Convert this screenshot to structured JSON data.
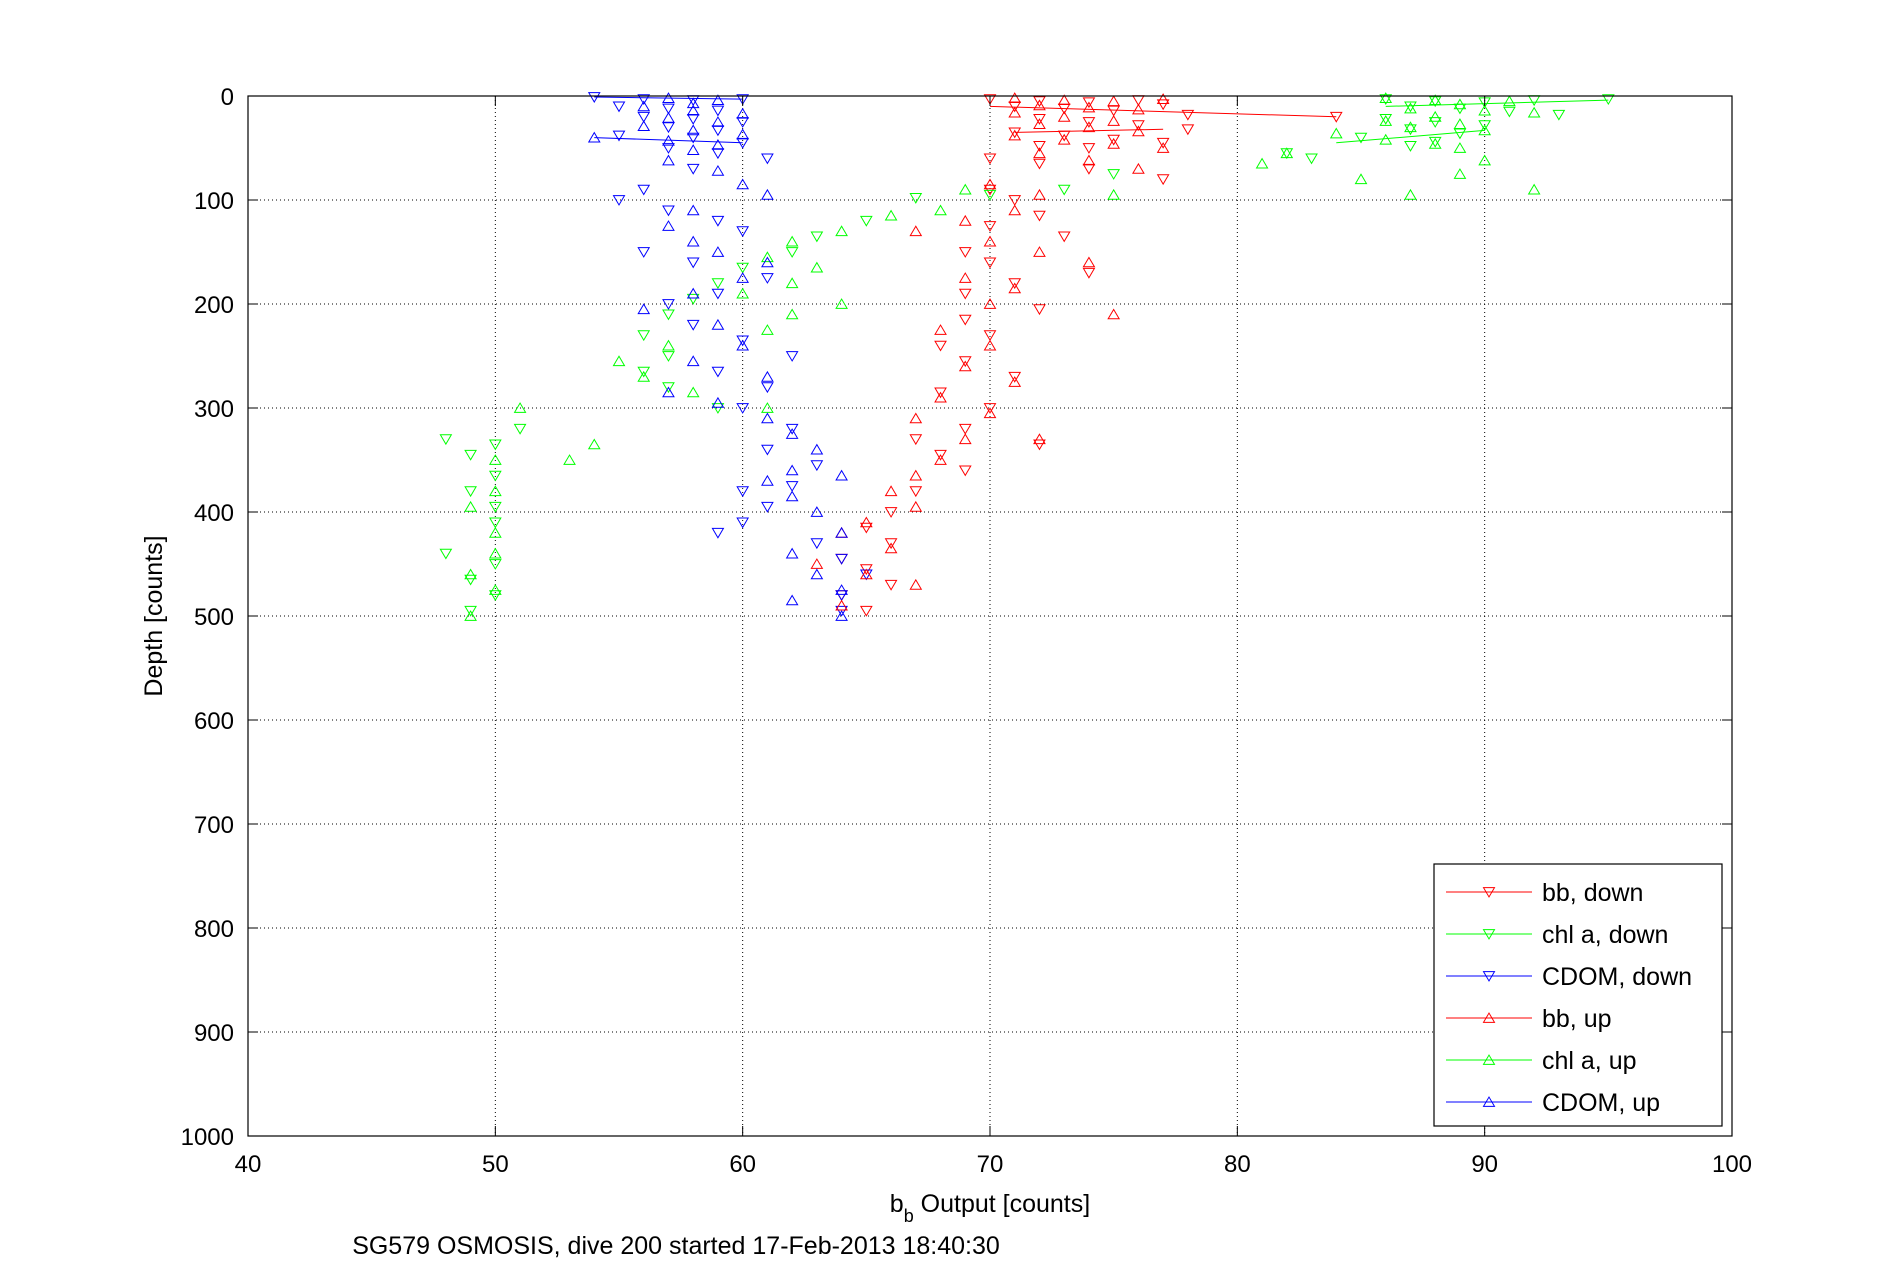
{
  "chart_data": {
    "type": "scatter",
    "xlabel_main": "b",
    "xlabel_sub": "b",
    "xlabel_rest": " Output [counts]",
    "ylabel": "Depth [counts]",
    "caption": "SG579 OSMOSIS, dive 200 started 17-Feb-2013 18:40:30",
    "xlim": [
      40,
      100
    ],
    "ylim": [
      0,
      1000
    ],
    "y_reversed": true,
    "grid": "dotted",
    "legend_position": "bottom-right",
    "x_ticks": [
      40,
      50,
      60,
      70,
      80,
      90,
      100
    ],
    "y_ticks": [
      0,
      100,
      200,
      300,
      400,
      500,
      600,
      700,
      800,
      900,
      1000
    ],
    "x_tick_labels": [
      "40",
      "50",
      "60",
      "70",
      "80",
      "90",
      "100"
    ],
    "y_tick_labels": [
      "0",
      "100",
      "200",
      "300",
      "400",
      "500",
      "600",
      "700",
      "800",
      "900",
      "1000"
    ],
    "series": [
      {
        "name": "bb, down",
        "color": "#ff0000",
        "marker": "triangle-down",
        "points": [
          [
            70,
            3
          ],
          [
            72,
            5
          ],
          [
            74,
            6
          ],
          [
            76,
            4
          ],
          [
            77,
            8
          ],
          [
            71,
            10
          ],
          [
            73,
            12
          ],
          [
            75,
            14
          ],
          [
            78,
            18
          ],
          [
            84,
            20
          ],
          [
            72,
            22
          ],
          [
            74,
            25
          ],
          [
            76,
            28
          ],
          [
            78,
            32
          ],
          [
            71,
            35
          ],
          [
            73,
            38
          ],
          [
            75,
            42
          ],
          [
            77,
            45
          ],
          [
            72,
            48
          ],
          [
            74,
            50
          ],
          [
            70,
            60
          ],
          [
            72,
            65
          ],
          [
            74,
            70
          ],
          [
            77,
            80
          ],
          [
            70,
            90
          ],
          [
            71,
            100
          ],
          [
            72,
            115
          ],
          [
            70,
            125
          ],
          [
            73,
            135
          ],
          [
            69,
            150
          ],
          [
            70,
            160
          ],
          [
            74,
            170
          ],
          [
            71,
            180
          ],
          [
            69,
            190
          ],
          [
            72,
            205
          ],
          [
            69,
            215
          ],
          [
            70,
            230
          ],
          [
            68,
            240
          ],
          [
            69,
            255
          ],
          [
            71,
            270
          ],
          [
            68,
            285
          ],
          [
            70,
            300
          ],
          [
            69,
            320
          ],
          [
            67,
            330
          ],
          [
            68,
            345
          ],
          [
            72,
            335
          ],
          [
            69,
            360
          ],
          [
            67,
            380
          ],
          [
            66,
            400
          ],
          [
            65,
            415
          ],
          [
            66,
            430
          ],
          [
            64,
            445
          ],
          [
            65,
            455
          ],
          [
            66,
            470
          ],
          [
            64,
            480
          ],
          [
            65,
            495
          ]
        ]
      },
      {
        "name": "chl a, down",
        "color": "#00ff00",
        "marker": "triangle-down",
        "points": [
          [
            86,
            3
          ],
          [
            88,
            5
          ],
          [
            90,
            6
          ],
          [
            92,
            4
          ],
          [
            95,
            3
          ],
          [
            87,
            10
          ],
          [
            89,
            12
          ],
          [
            91,
            15
          ],
          [
            93,
            18
          ],
          [
            86,
            22
          ],
          [
            88,
            25
          ],
          [
            90,
            28
          ],
          [
            87,
            32
          ],
          [
            89,
            36
          ],
          [
            85,
            40
          ],
          [
            88,
            44
          ],
          [
            87,
            48
          ],
          [
            82,
            55
          ],
          [
            83,
            60
          ],
          [
            75,
            75
          ],
          [
            73,
            90
          ],
          [
            70,
            95
          ],
          [
            67,
            98
          ],
          [
            65,
            120
          ],
          [
            63,
            135
          ],
          [
            62,
            150
          ],
          [
            60,
            165
          ],
          [
            59,
            180
          ],
          [
            58,
            195
          ],
          [
            57,
            210
          ],
          [
            56,
            230
          ],
          [
            57,
            250
          ],
          [
            56,
            265
          ],
          [
            57,
            280
          ],
          [
            59,
            300
          ],
          [
            48,
            330
          ],
          [
            49,
            345
          ],
          [
            50,
            335
          ],
          [
            51,
            320
          ],
          [
            50,
            365
          ],
          [
            49,
            380
          ],
          [
            50,
            395
          ],
          [
            50,
            410
          ],
          [
            48,
            440
          ],
          [
            50,
            450
          ],
          [
            49,
            465
          ],
          [
            50,
            480
          ],
          [
            49,
            495
          ]
        ]
      },
      {
        "name": "CDOM, down",
        "color": "#0000ff",
        "marker": "triangle-down",
        "points": [
          [
            54,
            1
          ],
          [
            56,
            3
          ],
          [
            58,
            4
          ],
          [
            60,
            3
          ],
          [
            55,
            10
          ],
          [
            57,
            12
          ],
          [
            59,
            14
          ],
          [
            56,
            20
          ],
          [
            58,
            22
          ],
          [
            60,
            25
          ],
          [
            57,
            30
          ],
          [
            59,
            33
          ],
          [
            55,
            38
          ],
          [
            58,
            40
          ],
          [
            60,
            45
          ],
          [
            57,
            50
          ],
          [
            59,
            55
          ],
          [
            61,
            60
          ],
          [
            58,
            70
          ],
          [
            56,
            90
          ],
          [
            55,
            100
          ],
          [
            57,
            110
          ],
          [
            59,
            120
          ],
          [
            60,
            130
          ],
          [
            56,
            150
          ],
          [
            58,
            160
          ],
          [
            61,
            175
          ],
          [
            59,
            190
          ],
          [
            57,
            200
          ],
          [
            58,
            220
          ],
          [
            60,
            235
          ],
          [
            62,
            250
          ],
          [
            59,
            265
          ],
          [
            61,
            280
          ],
          [
            60,
            300
          ],
          [
            62,
            320
          ],
          [
            61,
            340
          ],
          [
            63,
            355
          ],
          [
            62,
            375
          ],
          [
            60,
            380
          ],
          [
            61,
            395
          ],
          [
            59,
            420
          ],
          [
            60,
            410
          ],
          [
            63,
            430
          ],
          [
            64,
            445
          ],
          [
            65,
            460
          ],
          [
            64,
            480
          ],
          [
            64,
            495
          ]
        ]
      },
      {
        "name": "bb, up",
        "color": "#ff0000",
        "marker": "triangle-up",
        "points": [
          [
            71,
            2
          ],
          [
            73,
            4
          ],
          [
            75,
            5
          ],
          [
            77,
            3
          ],
          [
            72,
            9
          ],
          [
            74,
            11
          ],
          [
            76,
            13
          ],
          [
            71,
            16
          ],
          [
            73,
            20
          ],
          [
            75,
            24
          ],
          [
            72,
            27
          ],
          [
            74,
            30
          ],
          [
            76,
            34
          ],
          [
            71,
            38
          ],
          [
            73,
            42
          ],
          [
            75,
            46
          ],
          [
            77,
            50
          ],
          [
            72,
            55
          ],
          [
            74,
            62
          ],
          [
            76,
            70
          ],
          [
            70,
            85
          ],
          [
            72,
            95
          ],
          [
            71,
            110
          ],
          [
            69,
            120
          ],
          [
            67,
            130
          ],
          [
            70,
            140
          ],
          [
            72,
            150
          ],
          [
            74,
            160
          ],
          [
            69,
            175
          ],
          [
            71,
            185
          ],
          [
            70,
            200
          ],
          [
            75,
            210
          ],
          [
            68,
            225
          ],
          [
            70,
            240
          ],
          [
            69,
            260
          ],
          [
            71,
            275
          ],
          [
            68,
            290
          ],
          [
            70,
            305
          ],
          [
            67,
            310
          ],
          [
            69,
            330
          ],
          [
            72,
            330
          ],
          [
            68,
            350
          ],
          [
            67,
            365
          ],
          [
            66,
            380
          ],
          [
            67,
            395
          ],
          [
            65,
            410
          ],
          [
            64,
            420
          ],
          [
            66,
            435
          ],
          [
            63,
            450
          ],
          [
            65,
            460
          ],
          [
            67,
            470
          ],
          [
            64,
            490
          ]
        ]
      },
      {
        "name": "chl a, up",
        "color": "#00ff00",
        "marker": "triangle-up",
        "points": [
          [
            86,
            2
          ],
          [
            88,
            4
          ],
          [
            91,
            5
          ],
          [
            89,
            8
          ],
          [
            87,
            12
          ],
          [
            90,
            14
          ],
          [
            92,
            16
          ],
          [
            88,
            20
          ],
          [
            86,
            24
          ],
          [
            89,
            27
          ],
          [
            87,
            30
          ],
          [
            90,
            33
          ],
          [
            84,
            36
          ],
          [
            86,
            42
          ],
          [
            88,
            46
          ],
          [
            89,
            50
          ],
          [
            82,
            55
          ],
          [
            81,
            65
          ],
          [
            90,
            62
          ],
          [
            85,
            80
          ],
          [
            89,
            75
          ],
          [
            87,
            95
          ],
          [
            92,
            90
          ],
          [
            75,
            95
          ],
          [
            69,
            90
          ],
          [
            68,
            110
          ],
          [
            66,
            115
          ],
          [
            64,
            130
          ],
          [
            62,
            140
          ],
          [
            61,
            155
          ],
          [
            63,
            165
          ],
          [
            62,
            180
          ],
          [
            60,
            190
          ],
          [
            64,
            200
          ],
          [
            62,
            210
          ],
          [
            61,
            225
          ],
          [
            57,
            240
          ],
          [
            55,
            255
          ],
          [
            56,
            270
          ],
          [
            58,
            285
          ],
          [
            61,
            300
          ],
          [
            54,
            335
          ],
          [
            53,
            350
          ],
          [
            50,
            350
          ],
          [
            51,
            300
          ],
          [
            50,
            380
          ],
          [
            49,
            395
          ],
          [
            50,
            420
          ],
          [
            50,
            440
          ],
          [
            49,
            460
          ],
          [
            50,
            475
          ],
          [
            49,
            500
          ]
        ]
      },
      {
        "name": "CDOM, up",
        "color": "#0000ff",
        "marker": "triangle-up",
        "points": [
          [
            57,
            2
          ],
          [
            59,
            4
          ],
          [
            58,
            7
          ],
          [
            56,
            10
          ],
          [
            58,
            14
          ],
          [
            60,
            17
          ],
          [
            57,
            21
          ],
          [
            59,
            25
          ],
          [
            56,
            29
          ],
          [
            58,
            33
          ],
          [
            60,
            37
          ],
          [
            54,
            40
          ],
          [
            57,
            43
          ],
          [
            59,
            47
          ],
          [
            58,
            52
          ],
          [
            57,
            62
          ],
          [
            59,
            72
          ],
          [
            60,
            85
          ],
          [
            61,
            95
          ],
          [
            58,
            110
          ],
          [
            57,
            125
          ],
          [
            58,
            140
          ],
          [
            59,
            150
          ],
          [
            61,
            160
          ],
          [
            60,
            175
          ],
          [
            58,
            190
          ],
          [
            56,
            205
          ],
          [
            59,
            220
          ],
          [
            60,
            240
          ],
          [
            58,
            255
          ],
          [
            61,
            270
          ],
          [
            57,
            285
          ],
          [
            59,
            295
          ],
          [
            61,
            310
          ],
          [
            62,
            325
          ],
          [
            63,
            340
          ],
          [
            62,
            360
          ],
          [
            61,
            370
          ],
          [
            62,
            385
          ],
          [
            64,
            365
          ],
          [
            63,
            400
          ],
          [
            64,
            420
          ],
          [
            62,
            440
          ],
          [
            63,
            460
          ],
          [
            64,
            475
          ],
          [
            62,
            485
          ],
          [
            64,
            500
          ]
        ]
      }
    ]
  }
}
